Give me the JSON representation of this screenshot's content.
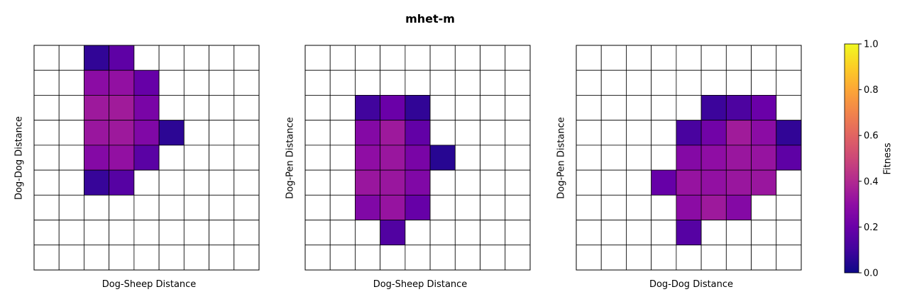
{
  "chart_data": {
    "title": "mhet-m",
    "colormap": "plasma",
    "colorbar": {
      "label": "Fitness",
      "range": [
        0.0,
        1.0
      ],
      "ticks": [
        "0.0",
        "0.2",
        "0.4",
        "0.6",
        "0.8",
        "1.0"
      ]
    },
    "panels": [
      {
        "type": "heatmap",
        "xlabel": "Dog-Sheep Distance",
        "ylabel": "Dog-Dog Distance",
        "grid": [
          9,
          9
        ],
        "values": [
          [
            null,
            null,
            0.07,
            0.17,
            null,
            null,
            null,
            null,
            null
          ],
          [
            null,
            null,
            0.29,
            0.31,
            0.19,
            null,
            null,
            null,
            null
          ],
          [
            null,
            null,
            0.34,
            0.35,
            0.24,
            null,
            null,
            null,
            null
          ],
          [
            null,
            null,
            0.33,
            0.34,
            0.26,
            0.06,
            null,
            null,
            null
          ],
          [
            null,
            null,
            0.27,
            0.31,
            0.16,
            null,
            null,
            null,
            null
          ],
          [
            null,
            null,
            0.08,
            0.15,
            null,
            null,
            null,
            null,
            null
          ],
          [
            null,
            null,
            null,
            null,
            null,
            null,
            null,
            null,
            null
          ],
          [
            null,
            null,
            null,
            null,
            null,
            null,
            null,
            null,
            null
          ],
          [
            null,
            null,
            null,
            null,
            null,
            null,
            null,
            null,
            null
          ]
        ]
      },
      {
        "type": "heatmap",
        "xlabel": "Dog-Sheep Distance",
        "ylabel": "Dog-Pen Distance",
        "grid": [
          9,
          9
        ],
        "values": [
          [
            null,
            null,
            null,
            null,
            null,
            null,
            null,
            null,
            null
          ],
          [
            null,
            null,
            null,
            null,
            null,
            null,
            null,
            null,
            null
          ],
          [
            null,
            null,
            0.1,
            0.2,
            0.07,
            null,
            null,
            null,
            null
          ],
          [
            null,
            null,
            0.27,
            0.34,
            0.18,
            null,
            null,
            null,
            null
          ],
          [
            null,
            null,
            0.3,
            0.33,
            0.24,
            0.05,
            null,
            null,
            null
          ],
          [
            null,
            null,
            0.33,
            0.33,
            0.26,
            null,
            null,
            null,
            null
          ],
          [
            null,
            null,
            0.26,
            0.32,
            0.19,
            null,
            null,
            null,
            null
          ],
          [
            null,
            null,
            null,
            0.14,
            null,
            null,
            null,
            null,
            null
          ],
          [
            null,
            null,
            null,
            null,
            null,
            null,
            null,
            null,
            null
          ]
        ]
      },
      {
        "type": "heatmap",
        "xlabel": "Dog-Dog Distance",
        "ylabel": "Dog-Pen Distance",
        "grid": [
          9,
          9
        ],
        "values": [
          [
            null,
            null,
            null,
            null,
            null,
            null,
            null,
            null,
            null
          ],
          [
            null,
            null,
            null,
            null,
            null,
            null,
            null,
            null,
            null
          ],
          [
            null,
            null,
            null,
            null,
            null,
            0.09,
            0.13,
            0.2,
            null
          ],
          [
            null,
            null,
            null,
            null,
            0.12,
            0.22,
            0.35,
            0.29,
            0.07
          ],
          [
            null,
            null,
            null,
            null,
            0.27,
            0.3,
            0.33,
            0.32,
            0.17
          ],
          [
            null,
            null,
            null,
            0.19,
            0.32,
            0.31,
            0.33,
            0.33,
            null
          ],
          [
            null,
            null,
            null,
            null,
            0.29,
            0.34,
            0.27,
            null,
            null
          ],
          [
            null,
            null,
            null,
            null,
            0.15,
            null,
            null,
            null,
            null
          ],
          [
            null,
            null,
            null,
            null,
            null,
            null,
            null,
            null,
            null
          ]
        ]
      }
    ]
  }
}
